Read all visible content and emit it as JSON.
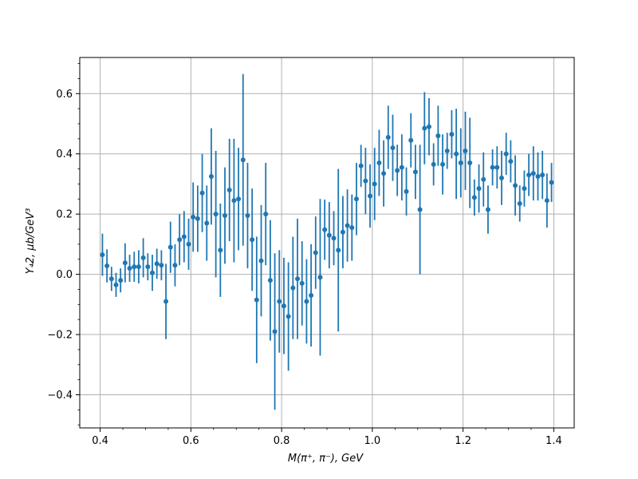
{
  "chart_data": {
    "type": "scatter",
    "title": "",
    "xlabel": "M(π⁺, π⁻), GeV",
    "ylabel": "Y₄2, μb/GeV³",
    "xlim": [
      0.355,
      1.445
    ],
    "ylim": [
      -0.51,
      0.72
    ],
    "grid": true,
    "marker_color": "#1f77b4",
    "x_ticks": [
      0.4,
      0.6,
      0.8,
      1.0,
      1.2,
      1.4
    ],
    "x_tick_labels": [
      "0.4",
      "0.6",
      "0.8",
      "1.0",
      "1.2",
      "1.4"
    ],
    "y_ticks": [
      -0.4,
      -0.2,
      0.0,
      0.2,
      0.4,
      0.6
    ],
    "y_tick_labels": [
      "−0.4",
      "−0.2",
      "0.0",
      "0.2",
      "0.4",
      "0.6"
    ],
    "series": [
      {
        "x": [
          0.405,
          0.415,
          0.425,
          0.435,
          0.445,
          0.455,
          0.465,
          0.475,
          0.485,
          0.495,
          0.505,
          0.515,
          0.525,
          0.535,
          0.545,
          0.555,
          0.565,
          0.575,
          0.585,
          0.595,
          0.605,
          0.615,
          0.625,
          0.635,
          0.645,
          0.655,
          0.665,
          0.675,
          0.685,
          0.695,
          0.705,
          0.715,
          0.725,
          0.735,
          0.745,
          0.755,
          0.765,
          0.775,
          0.785,
          0.795,
          0.805,
          0.815,
          0.825,
          0.835,
          0.845,
          0.855,
          0.865,
          0.875,
          0.885,
          0.895,
          0.905,
          0.915,
          0.925,
          0.935,
          0.945,
          0.955,
          0.965,
          0.975,
          0.985,
          0.995,
          1.005,
          1.015,
          1.025,
          1.035,
          1.045,
          1.055,
          1.065,
          1.075,
          1.085,
          1.095,
          1.105,
          1.115,
          1.125,
          1.135,
          1.145,
          1.155,
          1.165,
          1.175,
          1.185,
          1.195,
          1.205,
          1.215,
          1.225,
          1.235,
          1.245,
          1.255,
          1.265,
          1.275,
          1.285,
          1.295,
          1.305,
          1.315,
          1.325,
          1.335,
          1.345,
          1.355,
          1.365,
          1.375,
          1.385,
          1.395
        ],
        "y": [
          0.065,
          0.028,
          -0.015,
          -0.035,
          -0.02,
          0.038,
          0.02,
          0.025,
          0.025,
          0.055,
          0.025,
          0.005,
          0.035,
          0.03,
          -0.09,
          0.09,
          0.03,
          0.115,
          0.125,
          0.1,
          0.19,
          0.185,
          0.27,
          0.17,
          0.325,
          0.2,
          0.08,
          0.195,
          0.28,
          0.245,
          0.25,
          0.38,
          0.195,
          0.115,
          -0.085,
          0.045,
          0.2,
          -0.02,
          -0.19,
          -0.09,
          -0.105,
          -0.14,
          -0.045,
          -0.015,
          -0.03,
          -0.09,
          -0.07,
          0.072,
          -0.01,
          0.148,
          0.13,
          0.12,
          0.08,
          0.14,
          0.162,
          0.155,
          0.25,
          0.36,
          0.31,
          0.26,
          0.3,
          0.37,
          0.335,
          0.455,
          0.42,
          0.345,
          0.355,
          0.275,
          0.445,
          0.34,
          0.215,
          0.485,
          0.49,
          0.365,
          0.46,
          0.365,
          0.41,
          0.465,
          0.4,
          0.37,
          0.41,
          0.37,
          0.255,
          0.285,
          0.315,
          0.215,
          0.355,
          0.355,
          0.32,
          0.4,
          0.375,
          0.295,
          0.235,
          0.285,
          0.33,
          0.335,
          0.325,
          0.33,
          0.245,
          0.305
        ],
        "yerr": [
          0.07,
          0.055,
          0.04,
          0.04,
          0.04,
          0.065,
          0.045,
          0.05,
          0.055,
          0.065,
          0.045,
          0.06,
          0.05,
          0.05,
          0.125,
          0.085,
          0.07,
          0.085,
          0.085,
          0.085,
          0.115,
          0.11,
          0.13,
          0.125,
          0.16,
          0.21,
          0.155,
          0.16,
          0.17,
          0.205,
          0.17,
          0.285,
          0.175,
          0.17,
          0.21,
          0.185,
          0.17,
          0.2,
          0.26,
          0.17,
          0.16,
          0.18,
          0.17,
          0.2,
          0.14,
          0.14,
          0.17,
          0.12,
          0.26,
          0.1,
          0.11,
          0.09,
          0.27,
          0.12,
          0.12,
          0.11,
          0.12,
          0.07,
          0.11,
          0.105,
          0.12,
          0.11,
          0.11,
          0.105,
          0.11,
          0.085,
          0.11,
          0.08,
          0.09,
          0.09,
          0.215,
          0.12,
          0.095,
          0.07,
          0.1,
          0.1,
          0.06,
          0.08,
          0.15,
          0.115,
          0.13,
          0.15,
          0.06,
          0.08,
          0.09,
          0.08,
          0.06,
          0.07,
          0.09,
          0.07,
          0.07,
          0.1,
          0.06,
          0.06,
          0.07,
          0.09,
          0.08,
          0.08,
          0.09,
          0.065
        ]
      }
    ]
  }
}
